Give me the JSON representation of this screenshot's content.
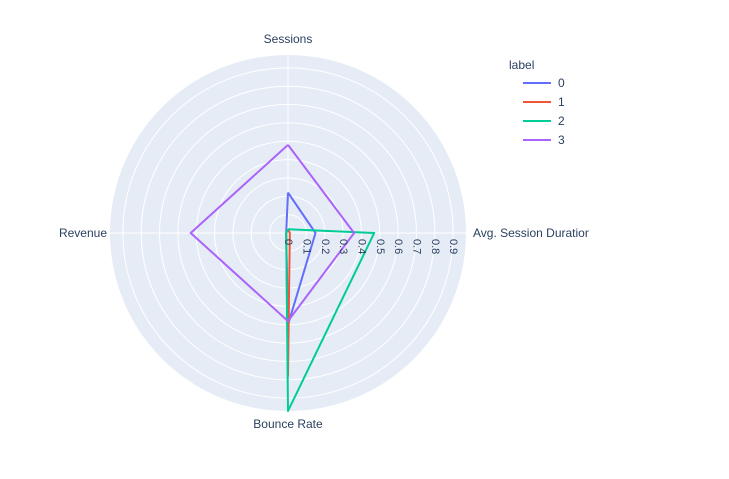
{
  "chart_data": {
    "type": "radar",
    "axes": [
      "Sessions",
      "Avg. Session Duration",
      "Bounce Rate",
      "Revenue"
    ],
    "radial_range": [
      0,
      0.97
    ],
    "radial_ticks": [
      "0",
      "0.1",
      "0.2",
      "0.3",
      "0.4",
      "0.5",
      "0.6",
      "0.7",
      "0.8",
      "0.9"
    ],
    "grid": true,
    "legend": {
      "title": "label",
      "position": "top-right"
    },
    "series": [
      {
        "name": "0",
        "color": "#636efa",
        "values": [
          0.22,
          0.15,
          0.5,
          0.01
        ]
      },
      {
        "name": "1",
        "color": "#ef553b",
        "values": [
          0.02,
          0.01,
          0.78,
          0.01
        ]
      },
      {
        "name": "2",
        "color": "#00cc96",
        "values": [
          0.02,
          0.47,
          0.97,
          0.01
        ]
      },
      {
        "name": "3",
        "color": "#ab63fa",
        "values": [
          0.48,
          0.36,
          0.48,
          0.53
        ]
      }
    ],
    "background_color": "#e5ecf6",
    "grid_color": "#ffffff",
    "text_color": "#2a3f5f"
  }
}
